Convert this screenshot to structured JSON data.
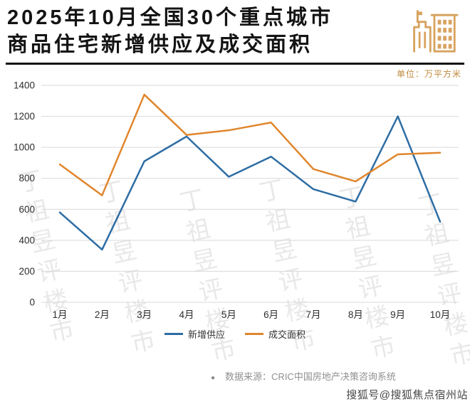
{
  "header": {
    "title_line1": "2025年10月全国30个重点城市",
    "title_line2": "商品住宅新增供应及成交面积",
    "unit_label": "单位：万平方米"
  },
  "chart_data": {
    "type": "line",
    "title": "2025年10月全国30个重点城市商品住宅新增供应及成交面积",
    "unit": "万平方米",
    "categories": [
      "1月",
      "2月",
      "3月",
      "4月",
      "5月",
      "6月",
      "7月",
      "8月",
      "9月",
      "10月"
    ],
    "series": [
      {
        "name": "新增供应",
        "color": "#2e6da4",
        "values": [
          580,
          340,
          910,
          1070,
          810,
          940,
          730,
          650,
          1200,
          520
        ]
      },
      {
        "name": "成交面积",
        "color": "#e0862d",
        "values": [
          890,
          690,
          1340,
          1080,
          1110,
          1160,
          860,
          780,
          955,
          965
        ]
      }
    ],
    "ylim": [
      0,
      1400
    ],
    "ytick_step": 200,
    "grid": true,
    "legend_position": "bottom"
  },
  "watermark": {
    "text": "丁祖昱评楼市"
  },
  "footer": {
    "bullet": "●",
    "source": "数据来源：CRIC中国房地产决策咨询系统"
  },
  "credit": "搜狐号@搜狐焦点宿州站",
  "colors": {
    "title": "#141414",
    "unit": "#bf8a3d",
    "icon": "#d8a35f",
    "grid": "#d9d9d9",
    "tick": "#2e2e2e",
    "footer": "#909090",
    "credit": "#474747"
  }
}
